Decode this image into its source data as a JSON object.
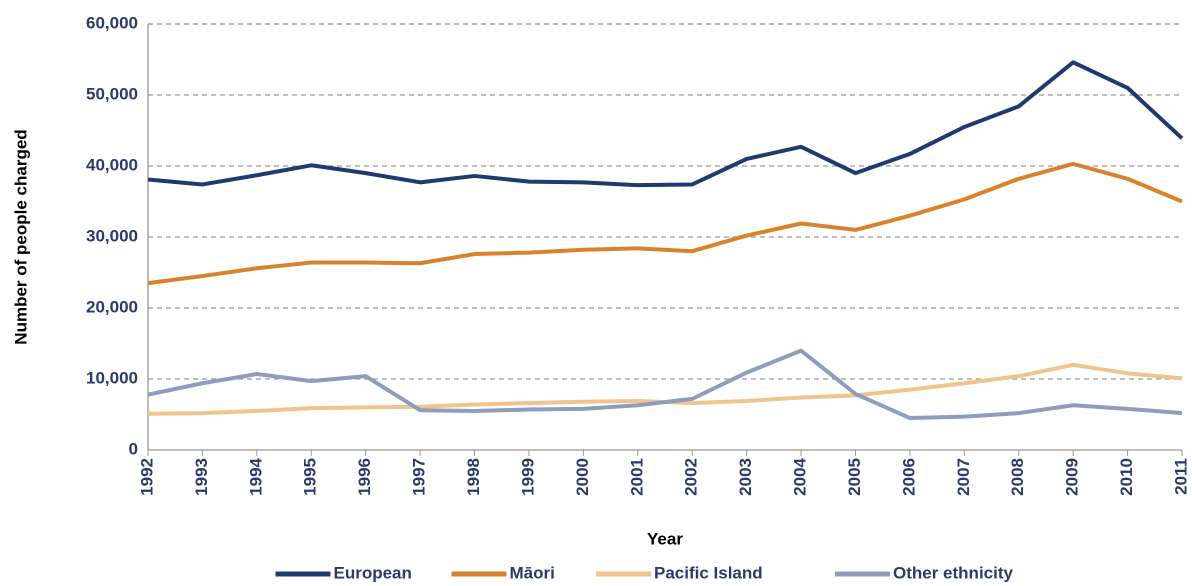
{
  "chart_data": {
    "type": "line",
    "x_label": "Year",
    "y_label": "Number of people charged",
    "categories": [
      "1992",
      "1993",
      "1994",
      "1995",
      "1996",
      "1997",
      "1998",
      "1999",
      "2000",
      "2001",
      "2002",
      "2003",
      "2004",
      "2005",
      "2006",
      "2007",
      "2008",
      "2009",
      "2010",
      "2011"
    ],
    "series": [
      {
        "name": "European",
        "color": "#1f3a6e",
        "values": [
          38100,
          37400,
          38700,
          40100,
          39000,
          37700,
          38600,
          37800,
          37700,
          37300,
          37400,
          41000,
          42700,
          39000,
          41700,
          45500,
          48400,
          54600,
          51000,
          43900
        ]
      },
      {
        "name": "Māori",
        "color": "#d9822b",
        "values": [
          23500,
          24500,
          25600,
          26400,
          26400,
          26300,
          27600,
          27800,
          28200,
          28400,
          28000,
          30200,
          31900,
          31000,
          33000,
          35300,
          38200,
          40300,
          38200,
          35000
        ]
      },
      {
        "name": "Pacific Island",
        "color": "#f2c48d",
        "values": [
          5100,
          5200,
          5500,
          5900,
          6000,
          6100,
          6400,
          6600,
          6800,
          6900,
          6600,
          6900,
          7400,
          7700,
          8500,
          9400,
          10400,
          12000,
          10800,
          10100
        ]
      },
      {
        "name": "Other ethnicity",
        "color": "#8e9cbd",
        "values": [
          7800,
          9400,
          10700,
          9700,
          10400,
          5600,
          5500,
          5700,
          5800,
          6300,
          7200,
          10900,
          14000,
          7900,
          4500,
          4700,
          5200,
          6300,
          5800,
          5200
        ]
      }
    ],
    "ylim": [
      0,
      60000
    ],
    "yticks": [
      0,
      {
        "value": 10000,
        "label": "10,000"
      },
      {
        "value": 20000,
        "label": "20,000"
      },
      {
        "value": 30000,
        "label": "30,000"
      },
      {
        "value": 40000,
        "label": "40,000"
      },
      {
        "value": 50000,
        "label": "50,000"
      },
      {
        "value": 60000,
        "label": "60,000"
      }
    ],
    "grid": true,
    "legend": "bottom"
  }
}
